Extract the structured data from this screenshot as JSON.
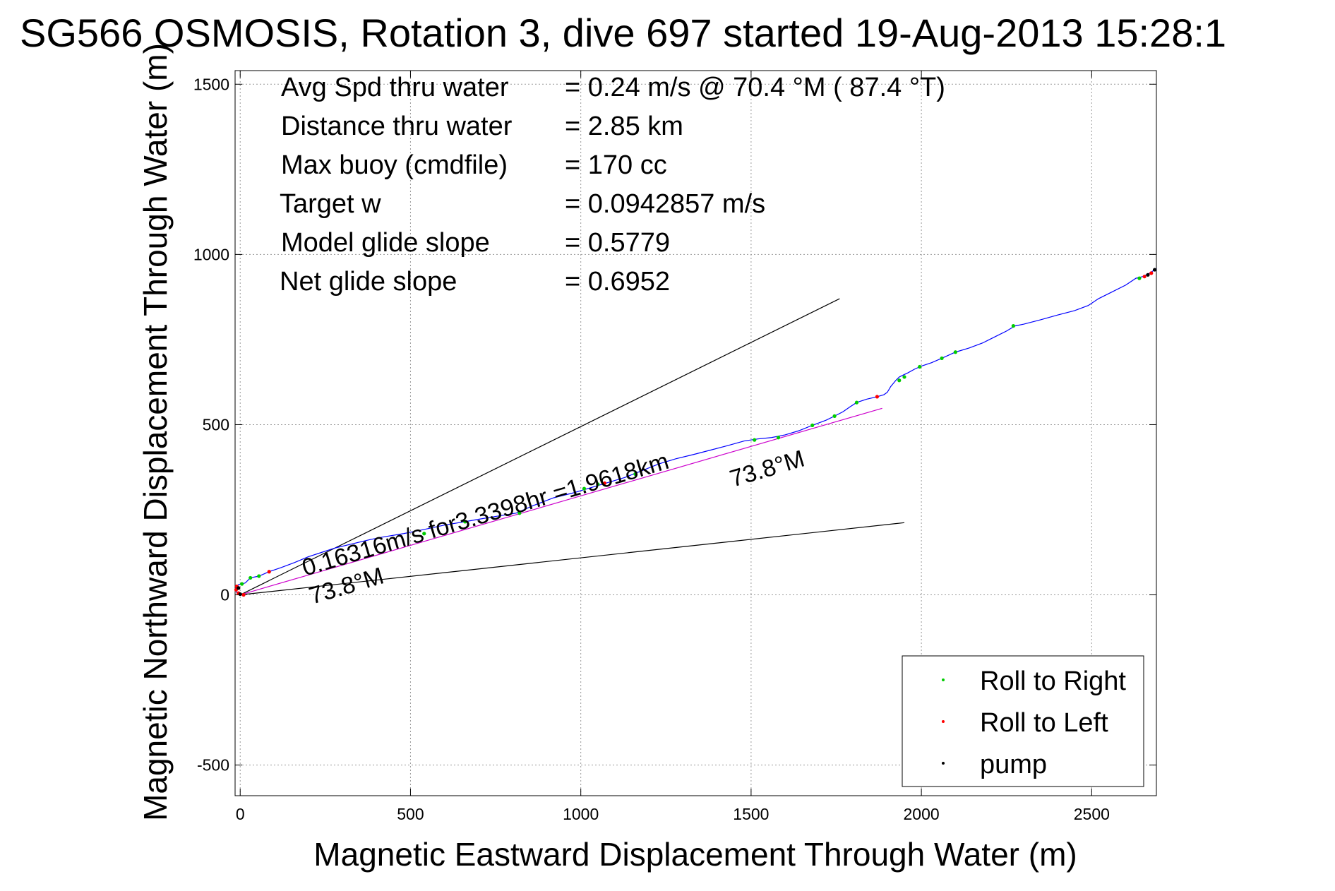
{
  "chart_data": {
    "type": "line",
    "title": "SG566 OSMOSIS, Rotation 3, dive 697 started 19-Aug-2013 15:28:1",
    "xlabel": "Magnetic Eastward Displacement Through Water (m)",
    "ylabel": "Magnetic Northward Displacement Through Water (m)",
    "xlim": [
      -15,
      2690
    ],
    "ylim": [
      -590,
      1540
    ],
    "xticks": [
      0,
      500,
      1000,
      1500,
      2000,
      2500
    ],
    "yticks": [
      -500,
      0,
      500,
      1000,
      1500
    ],
    "x_tick_labels": [
      "0",
      "500",
      "1000",
      "1500",
      "2000",
      "2500"
    ],
    "y_tick_labels": [
      "-500",
      "0",
      "500",
      "1000",
      "1500"
    ],
    "grid": true,
    "legend_position": "bottom-right",
    "stats": [
      {
        "label": "Avg Spd thru water",
        "value": "=  0.24 m/s @  70.4 °M ( 87.4 °T)"
      },
      {
        "label": "Distance thru water",
        "value": "=  2.85 km"
      },
      {
        "label": "Max buoy (cmdfile)",
        "value": "= 170 cc"
      },
      {
        "label": "Target w",
        "value": "= 0.0942857 m/s"
      },
      {
        "label": "Model glide slope",
        "value": "= 0.5779"
      },
      {
        "label": "Net glide slope",
        "value": "= 0.6952"
      }
    ],
    "annotations": {
      "current_text": "0.16316m/s for3.3398hr =1.9618km",
      "heading_text_1": "73.8°M",
      "heading_text_2": "73.8°M"
    },
    "reference_lines": [
      {
        "x": [
          0,
          1760
        ],
        "y": [
          0,
          870
        ],
        "color": "#000000"
      },
      {
        "x": [
          0,
          1950
        ],
        "y": [
          0,
          212
        ],
        "color": "#000000"
      },
      {
        "x": [
          0,
          1885
        ],
        "y": [
          0,
          548
        ],
        "color": "#cc00cc"
      }
    ],
    "track": {
      "color": "#0000ff",
      "x": [
        -10,
        -12,
        -5,
        5,
        15,
        30,
        55,
        85,
        120,
        160,
        200,
        240,
        280,
        330,
        380,
        420,
        480,
        540,
        600,
        660,
        700,
        760,
        810,
        860,
        920,
        980,
        1040,
        1080,
        1130,
        1180,
        1230,
        1280,
        1330,
        1380,
        1430,
        1480,
        1520,
        1560,
        1600,
        1640,
        1680,
        1720,
        1745,
        1770,
        1790,
        1810,
        1840,
        1870,
        1890,
        1900,
        1910,
        1925,
        1935,
        1945,
        1960,
        1980,
        2000,
        2030,
        2060,
        2100,
        2140,
        2180,
        2220,
        2250,
        2275,
        2300,
        2350,
        2400,
        2450,
        2490,
        2520,
        2560,
        2600,
        2630,
        2650,
        2670,
        2690
      ],
      "y": [
        5,
        20,
        30,
        32,
        35,
        50,
        55,
        68,
        80,
        95,
        112,
        125,
        138,
        150,
        162,
        170,
        180,
        192,
        205,
        215,
        222,
        232,
        240,
        262,
        285,
        300,
        318,
        330,
        345,
        365,
        385,
        400,
        412,
        425,
        438,
        452,
        458,
        462,
        470,
        482,
        498,
        513,
        525,
        538,
        552,
        565,
        575,
        582,
        588,
        595,
        612,
        630,
        640,
        645,
        652,
        663,
        672,
        682,
        695,
        713,
        725,
        740,
        760,
        775,
        790,
        795,
        808,
        822,
        835,
        850,
        870,
        890,
        910,
        930,
        935,
        945,
        958
      ]
    },
    "markers": {
      "roll_right": {
        "x": [
          5,
          30,
          55,
          540,
          660,
          820,
          1010,
          1050,
          1160,
          1510,
          1580,
          1680,
          1745,
          1810,
          1935,
          1950,
          1995,
          2060,
          2100,
          2270,
          2640
        ],
        "y": [
          32,
          50,
          55,
          180,
          215,
          240,
          312,
          325,
          355,
          455,
          462,
          498,
          525,
          565,
          630,
          640,
          670,
          695,
          713,
          790,
          930
        ]
      },
      "roll_left": {
        "x": [
          -12,
          -10,
          -5,
          10,
          85,
          1070,
          1870,
          2655,
          2675
        ],
        "y": [
          15,
          25,
          5,
          0,
          68,
          328,
          582,
          935,
          945
        ]
      },
      "pump": {
        "x": [
          -5,
          0,
          2665,
          2685
        ],
        "y": [
          20,
          2,
          940,
          955
        ]
      }
    },
    "legend": [
      {
        "name": "Roll to Right",
        "color": "#00cc00"
      },
      {
        "name": "Roll to Left",
        "color": "#ff0000"
      },
      {
        "name": "pump",
        "color": "#000000"
      }
    ]
  }
}
